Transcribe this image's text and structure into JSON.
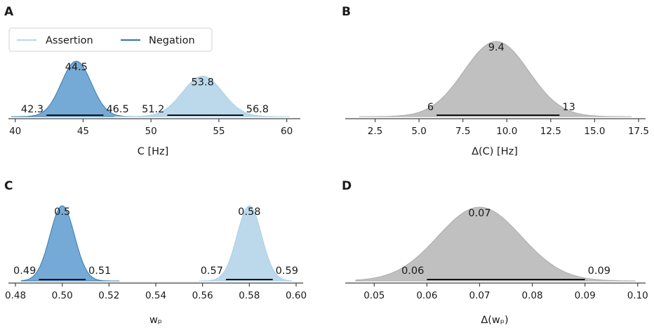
{
  "colors": {
    "assertion": "#b8d8ea",
    "assertion_edge": "#a6cde3",
    "negation": "#6ea6d4",
    "negation_edge": "#2c75b0",
    "difference": "#bdbdbd",
    "difference_edge": "#a8a8a8",
    "hdi_line": "#111111",
    "axis": "#444444"
  },
  "legend": {
    "assertion": "Assertion",
    "negation": "Negation"
  },
  "chart_data": [
    {
      "id": "A",
      "panel_label": "A",
      "type": "area",
      "title": "",
      "xlabel": "C [Hz]",
      "xlim": [
        39.5,
        61
      ],
      "xticks": [
        40,
        45,
        50,
        55,
        60
      ],
      "xtick_labels": [
        "40",
        "45",
        "50",
        "55",
        "60"
      ],
      "series": [
        {
          "name": "Negation",
          "color_key": "negation",
          "mean": 44.5,
          "hdi": [
            42.3,
            46.5
          ],
          "support": [
            39.7,
            51.0
          ],
          "labels": {
            "mean": "44.5",
            "low": "42.3",
            "high": "46.5"
          },
          "height": 1.0
        },
        {
          "name": "Assertion",
          "color_key": "assertion",
          "mean": 53.8,
          "hdi": [
            51.2,
            56.8
          ],
          "support": [
            47.3,
            60.2
          ],
          "labels": {
            "mean": "53.8",
            "low": "51.2",
            "high": "56.8"
          },
          "height": 0.73
        }
      ]
    },
    {
      "id": "B",
      "panel_label": "B",
      "type": "area",
      "title": "",
      "xlabel": "Δ(C) [Hz]",
      "xlim": [
        0.8,
        17.9
      ],
      "xticks": [
        2.5,
        5.0,
        7.5,
        10.0,
        12.5,
        15.0,
        17.5
      ],
      "xtick_labels": [
        "2.5",
        "5.0",
        "7.5",
        "10.0",
        "12.5",
        "15.0",
        "17.5"
      ],
      "series": [
        {
          "name": "Δ(C)",
          "color_key": "difference",
          "mean": 9.4,
          "hdi": [
            6,
            13
          ],
          "support": [
            1.6,
            17.1
          ],
          "labels": {
            "mean": "9.4",
            "low": "6",
            "high": "13"
          },
          "height": 1.0
        }
      ]
    },
    {
      "id": "C",
      "panel_label": "C",
      "type": "area",
      "title": "",
      "xlabel": "wₚ",
      "xlim": [
        0.477,
        0.603
      ],
      "xticks": [
        0.48,
        0.5,
        0.52,
        0.54,
        0.56,
        0.58,
        0.6
      ],
      "xtick_labels": [
        "0.48",
        "0.50",
        "0.52",
        "0.54",
        "0.56",
        "0.58",
        "0.60"
      ],
      "series": [
        {
          "name": "Negation",
          "color_key": "negation",
          "mean": 0.5,
          "hdi": [
            0.49,
            0.51
          ],
          "support": [
            0.4825,
            0.5245
          ],
          "labels": {
            "mean": "0.5",
            "low": "0.49",
            "high": "0.51"
          },
          "height": 1.0
        },
        {
          "name": "Assertion",
          "color_key": "assertion",
          "mean": 0.58,
          "hdi": [
            0.57,
            0.59
          ],
          "support": [
            0.5585,
            0.598
          ],
          "labels": {
            "mean": "0.58",
            "low": "0.57",
            "high": "0.59"
          },
          "height": 1.0
        }
      ]
    },
    {
      "id": "D",
      "panel_label": "D",
      "type": "area",
      "title": "",
      "xlabel": "Δ(wₚ)",
      "xlim": [
        0.0445,
        0.1015
      ],
      "xticks": [
        0.05,
        0.06,
        0.07,
        0.08,
        0.09,
        0.1
      ],
      "xtick_labels": [
        "0.05",
        "0.06",
        "0.07",
        "0.08",
        "0.09",
        "0.10"
      ],
      "series": [
        {
          "name": "Δ(wₚ)",
          "color_key": "difference",
          "mean": 0.07,
          "hdi": [
            0.06,
            0.09
          ],
          "support": [
            0.0465,
            0.0995
          ],
          "labels": {
            "mean": "0.07",
            "low": "0.06",
            "high": "0.09"
          },
          "height": 1.0
        }
      ]
    }
  ]
}
